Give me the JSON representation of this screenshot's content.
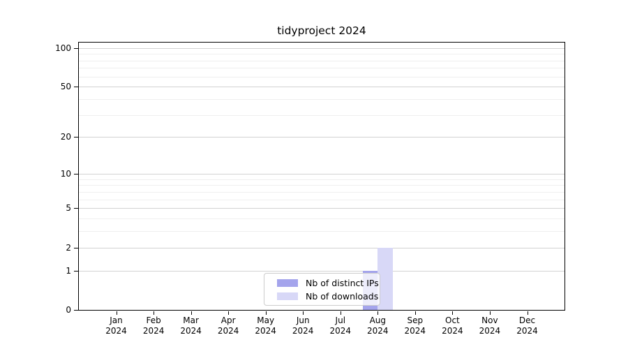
{
  "title": "tidyproject 2024",
  "colors": {
    "ips": "#a4a4ec",
    "downloads": "#d8d8f7",
    "grid_major": "#d2d2d2",
    "grid_minor": "#efefef",
    "axis": "#000000",
    "legend_border": "#cccccc"
  },
  "legend": {
    "items": [
      {
        "label": "Nb of distinct IPs",
        "color_key": "ips"
      },
      {
        "label": "Nb of downloads",
        "color_key": "downloads"
      }
    ]
  },
  "y_axis": {
    "scale": "log1p",
    "max": 110,
    "ticks": [
      0,
      1,
      2,
      5,
      10,
      20,
      50,
      100
    ],
    "tick_labels": [
      "0",
      "1",
      "2",
      "5",
      "10",
      "20",
      "50",
      "100"
    ],
    "minor_ticks": [
      3,
      4,
      6,
      7,
      8,
      9,
      30,
      40,
      60,
      70,
      80,
      90
    ]
  },
  "x_axis": {
    "categories": [
      {
        "month": "Jan",
        "year": "2024"
      },
      {
        "month": "Feb",
        "year": "2024"
      },
      {
        "month": "Mar",
        "year": "2024"
      },
      {
        "month": "Apr",
        "year": "2024"
      },
      {
        "month": "May",
        "year": "2024"
      },
      {
        "month": "Jun",
        "year": "2024"
      },
      {
        "month": "Jul",
        "year": "2024"
      },
      {
        "month": "Aug",
        "year": "2024"
      },
      {
        "month": "Sep",
        "year": "2024"
      },
      {
        "month": "Oct",
        "year": "2024"
      },
      {
        "month": "Nov",
        "year": "2024"
      },
      {
        "month": "Dec",
        "year": "2024"
      }
    ]
  },
  "chart_data": {
    "type": "bar",
    "title": "tidyproject 2024",
    "categories": [
      "Jan 2024",
      "Feb 2024",
      "Mar 2024",
      "Apr 2024",
      "May 2024",
      "Jun 2024",
      "Jul 2024",
      "Aug 2024",
      "Sep 2024",
      "Oct 2024",
      "Nov 2024",
      "Dec 2024"
    ],
    "series": [
      {
        "name": "Nb of distinct IPs",
        "values": [
          0,
          0,
          0,
          0,
          0,
          0,
          0,
          1,
          0,
          0,
          0,
          0
        ]
      },
      {
        "name": "Nb of downloads",
        "values": [
          0,
          0,
          0,
          0,
          0,
          0,
          0,
          2,
          0,
          0,
          0,
          0
        ]
      }
    ],
    "xlabel": "",
    "ylabel": "",
    "ylim": [
      0,
      110
    ],
    "yscale": "log1p",
    "yticks": [
      0,
      1,
      2,
      5,
      10,
      20,
      50,
      100
    ],
    "grid": true,
    "legend_position": "lower center"
  }
}
